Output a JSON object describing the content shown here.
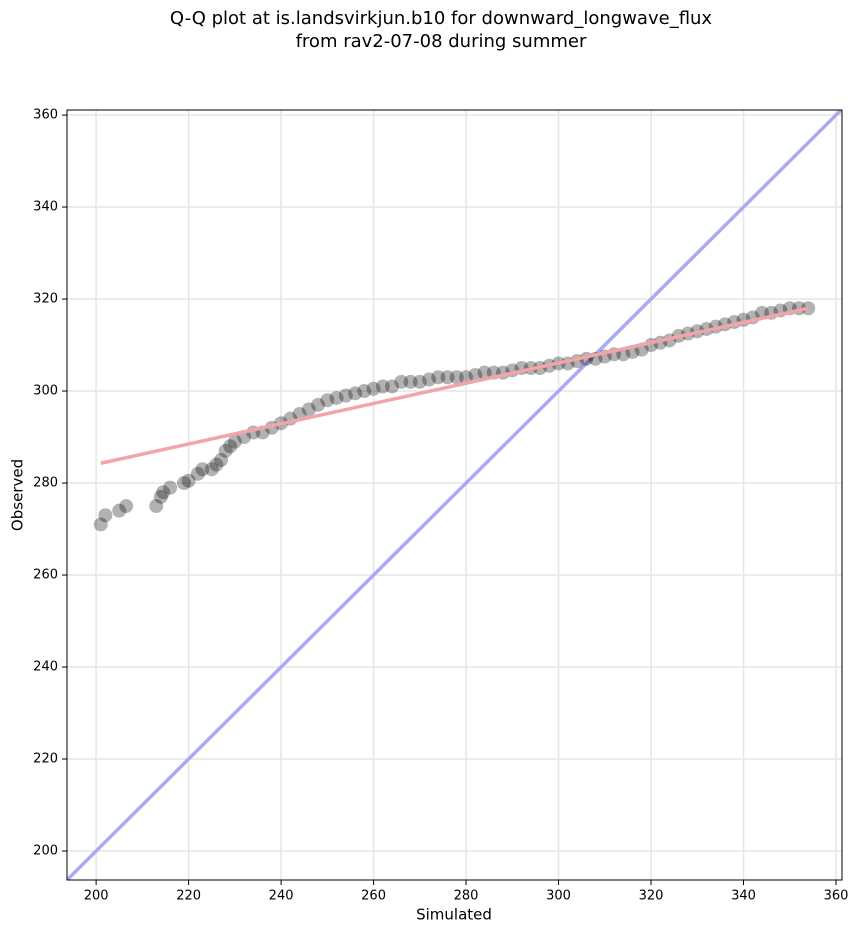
{
  "chart_data": {
    "type": "scatter",
    "title": "Q-Q plot at is.landsvirkjun.b10 for downward_longwave_flux",
    "subtitle": "from rav2-07-08 during summer",
    "x_label": "Simulated",
    "y_label": "Observed",
    "xlim": [
      193.7,
      361.3
    ],
    "ylim": [
      193.7,
      361.1
    ],
    "xticks": [
      200,
      220,
      240,
      260,
      280,
      300,
      320,
      340,
      360
    ],
    "yticks": [
      200,
      220,
      240,
      260,
      280,
      300,
      320,
      340,
      360
    ],
    "grid": true,
    "series": [
      {
        "color": "#000000",
        "x": [
          201,
          202,
          205,
          206.5,
          213,
          214,
          214.5,
          216,
          219,
          220,
          222,
          223,
          225,
          226,
          227,
          228,
          229,
          230,
          232,
          234,
          236,
          238,
          240,
          242,
          244,
          246,
          248,
          250,
          252,
          254,
          256,
          258,
          260,
          262,
          264,
          266,
          268,
          270,
          272,
          274,
          276,
          278,
          280,
          282,
          284,
          286,
          288,
          290,
          292,
          294,
          296,
          298,
          300,
          302,
          304,
          306,
          308,
          310,
          312,
          314,
          316,
          318,
          320,
          322,
          324,
          326,
          328,
          330,
          332,
          334,
          336,
          338,
          340,
          342,
          344,
          346,
          348,
          350,
          352,
          354
        ],
        "values": [
          271,
          273,
          274,
          275,
          275,
          277,
          278,
          279,
          280,
          280.5,
          282,
          283,
          283,
          284,
          285,
          287,
          288,
          289,
          290,
          291,
          291,
          292,
          293,
          294,
          295,
          296,
          297,
          298,
          298.5,
          299,
          299.5,
          300,
          300.5,
          301,
          301,
          302,
          302,
          302,
          302.5,
          303,
          303,
          303,
          303,
          303.5,
          304,
          304,
          304,
          304.5,
          305,
          305,
          305,
          305.5,
          306,
          306,
          306.5,
          307,
          307,
          307.5,
          308,
          308,
          308.5,
          309,
          310,
          310.5,
          311,
          312,
          312.5,
          313,
          313.5,
          314,
          314.5,
          315,
          315.5,
          316,
          317,
          317,
          317.5,
          318,
          318,
          318
        ]
      }
    ],
    "fit_line": {
      "color": "#f4a4a4",
      "x": [
        201,
        354
      ],
      "y": [
        284.3,
        318
      ]
    },
    "identity_line": {
      "color": "#aaaaf4"
    }
  }
}
